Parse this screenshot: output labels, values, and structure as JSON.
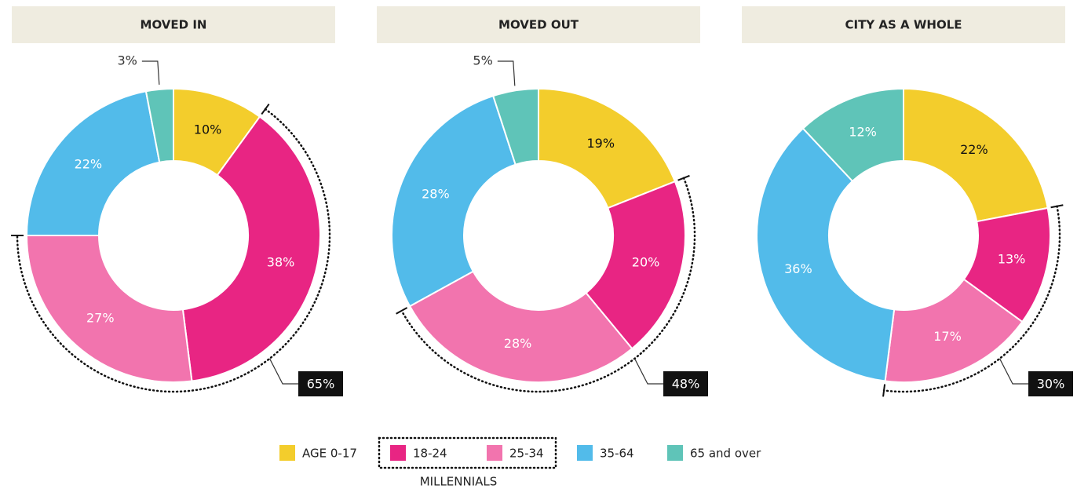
{
  "chart_data": [
    {
      "type": "pie",
      "title": "MOVED IN",
      "values": [
        10,
        38,
        27,
        22,
        3
      ],
      "value_labels": [
        "10%",
        "38%",
        "27%",
        "22%",
        "3%"
      ],
      "millennials_value": 65,
      "millennials_label": "65%"
    },
    {
      "type": "pie",
      "title": "MOVED OUT",
      "values": [
        19,
        20,
        28,
        28,
        5
      ],
      "value_labels": [
        "19%",
        "20%",
        "28%",
        "28%",
        "5%"
      ],
      "millennials_value": 48,
      "millennials_label": "48%"
    },
    {
      "type": "pie",
      "title": "CITY AS A WHOLE",
      "values": [
        22,
        13,
        17,
        36,
        12
      ],
      "value_labels": [
        "22%",
        "13%",
        "17%",
        "36%",
        "12%"
      ],
      "millennials_value": 30,
      "millennials_label": "30%"
    }
  ],
  "legend": {
    "categories": [
      "AGE 0-17",
      "18-24",
      "25-34",
      "35-64",
      "65 and over"
    ],
    "colors": [
      "#f3cd2c",
      "#e82583",
      "#f274ae",
      "#52bbea",
      "#5fc4b8"
    ],
    "group_label": "MILLENNIALS"
  }
}
